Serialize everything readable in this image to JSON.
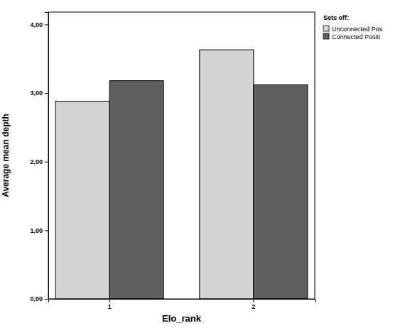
{
  "chart_data": {
    "type": "bar",
    "x_label": "Elo_rank",
    "y_label": "Average mean depth",
    "legend_title": "Sets off:",
    "categories": [
      "1",
      "2"
    ],
    "series": [
      {
        "name": "Unconnected Pos",
        "color": "#d4d4d4",
        "values": [
          2.88,
          3.63
        ]
      },
      {
        "name": "Connected Positi",
        "color": "#5f5f5f",
        "values": [
          3.18,
          3.12
        ]
      }
    ],
    "ylim": [
      0,
      4.18
    ],
    "yticks": [
      {
        "value": 0,
        "label": "0,00"
      },
      {
        "value": 1,
        "label": "1,00"
      },
      {
        "value": 2,
        "label": "2,00"
      },
      {
        "value": 3,
        "label": "3,00"
      },
      {
        "value": 4,
        "label": "4,00"
      }
    ],
    "grid": false,
    "legend": "right"
  }
}
